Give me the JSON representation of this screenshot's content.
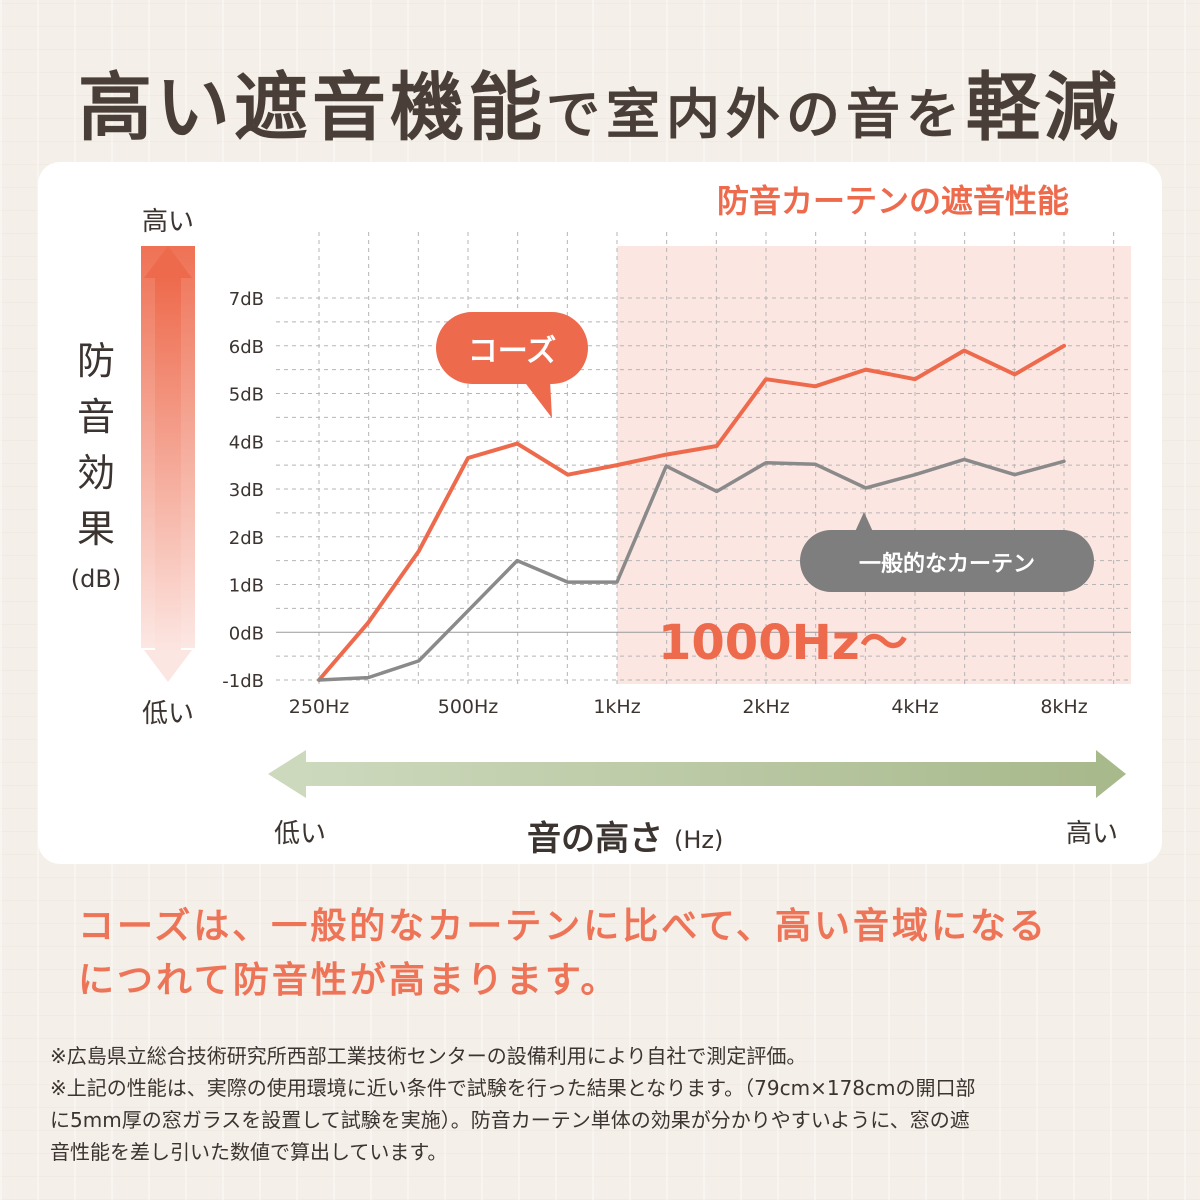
{
  "headline": {
    "part1": "高い遮音機能",
    "part2": "で室内外の音を",
    "part3": "軽減"
  },
  "chart_data": {
    "type": "line",
    "title": "防音カーテンの遮音性能",
    "x_ticks": [
      "250Hz",
      "500Hz",
      "1kHz",
      "2kHz",
      "4kHz",
      "8kHz"
    ],
    "y_ticks": [
      "7dB",
      "6dB",
      "5dB",
      "4dB",
      "3dB",
      "2dB",
      "1dB",
      "0dB",
      "-1dB"
    ],
    "ylim": [
      -1,
      7
    ],
    "ylabel": [
      "防",
      "音",
      "効",
      "果"
    ],
    "ylabel_unit": "(dB)",
    "y_high_label": "高い",
    "y_low_label": "低い",
    "xlabel": "音の高さ",
    "xlabel_unit": "(Hz)",
    "x_low_label": "低い",
    "x_high_label": "高い",
    "grid": true,
    "highlight_label": "1000Hz〜",
    "highlight_start_octave": 2,
    "series": [
      {
        "name": "コーズ",
        "color": "#ee6a4c",
        "x_octaves": [
          0,
          0.33,
          0.67,
          1,
          1.33,
          1.67,
          2,
          2.33,
          2.67,
          3,
          3.33,
          3.67,
          4,
          4.33,
          4.67,
          5
        ],
        "values": [
          -1,
          0.2,
          1.7,
          3.65,
          3.95,
          3.3,
          3.5,
          3.72,
          3.9,
          5.3,
          5.15,
          5.5,
          5.3,
          5.9,
          5.4,
          6.0
        ]
      },
      {
        "name": "一般的なカーテン",
        "color": "#8a8a8a",
        "x_octaves": [
          0,
          0.33,
          0.67,
          1,
          1.33,
          1.67,
          2,
          2.33,
          2.67,
          3,
          3.33,
          3.67,
          4,
          4.33,
          4.67,
          5
        ],
        "values": [
          -1,
          -0.95,
          -0.6,
          0.45,
          1.5,
          1.05,
          1.05,
          3.48,
          2.95,
          3.55,
          3.52,
          3.02,
          3.3,
          3.62,
          3.3,
          3.58
        ]
      }
    ]
  },
  "colors": {
    "accent": "#ee6a4c",
    "highlight_bg": "#fce6e2",
    "gray_line": "#8a8a8a",
    "green_arrow": "#a8b98c"
  },
  "summary": {
    "line1": "コーズは、一般的なカーテンに比べて、高い音域になる",
    "line2": "につれて防音性が高まります。"
  },
  "notes": [
    "※広島県立総合技術研究所西部工業技術センターの設備利用により自社で測定評価。",
    "※上記の性能は、実際の使用環境に近い条件で試験を行った結果となります。（79cm×178cmの開口部",
    "に5mm厚の窓ガラスを設置して試験を実施）。防音カーテン単体の効果が分かりやすいように、窓の遮",
    "音性能を差し引いた数値で算出しています。"
  ]
}
